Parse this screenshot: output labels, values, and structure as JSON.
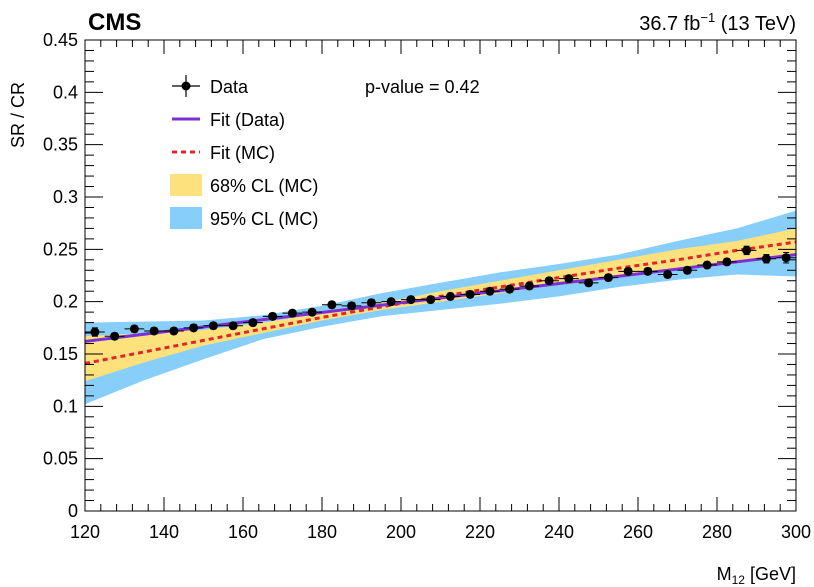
{
  "chart_data": {
    "type": "scatter",
    "experiment": "CMS",
    "lumi_prefix": "36.7 fb",
    "lumi_exp": "−1",
    "lumi_suffix": " (13 TeV)",
    "xlabel_main": "M",
    "xlabel_sub": "12",
    "xlabel_unit": " [GeV]",
    "ylabel": "SR / CR",
    "xlim": [
      120,
      300
    ],
    "ylim": [
      0,
      0.45
    ],
    "xticks": [
      120,
      140,
      160,
      180,
      200,
      220,
      240,
      260,
      280,
      300
    ],
    "xtick_labels": [
      "120",
      "140",
      "160",
      "180",
      "200",
      "220",
      "240",
      "260",
      "280",
      "300"
    ],
    "yticks": [
      0,
      0.05,
      0.1,
      0.15,
      0.2,
      0.25,
      0.3,
      0.35,
      0.4,
      0.45
    ],
    "ytick_labels": [
      "0",
      "0.05",
      "0.1",
      "0.15",
      "0.2",
      "0.25",
      "0.3",
      "0.35",
      "0.4",
      "0.45"
    ],
    "pvalue_text": "p-value = 0.42",
    "legend": [
      {
        "key": "data",
        "label": "Data",
        "color": "#000000"
      },
      {
        "key": "fit_data",
        "label": "Fit (Data)",
        "color": "#7b2fd4"
      },
      {
        "key": "fit_mc",
        "label": "Fit (MC)",
        "color": "#e3242b"
      },
      {
        "key": "cl68",
        "label": "68% CL (MC)",
        "color": "#fde17c"
      },
      {
        "key": "cl95",
        "label": "95% CL (MC)",
        "color": "#87cefa"
      }
    ],
    "data_points": {
      "x": [
        122.5,
        127.5,
        132.5,
        137.5,
        142.5,
        147.5,
        152.5,
        157.5,
        162.5,
        167.5,
        172.5,
        177.5,
        182.5,
        187.5,
        192.5,
        197.5,
        202.5,
        207.5,
        212.5,
        217.5,
        222.5,
        227.5,
        232.5,
        237.5,
        242.5,
        247.5,
        252.5,
        257.5,
        262.5,
        267.5,
        272.5,
        277.5,
        282.5,
        287.5,
        292.5,
        297.5
      ],
      "y": [
        0.171,
        0.167,
        0.174,
        0.172,
        0.172,
        0.175,
        0.177,
        0.177,
        0.18,
        0.186,
        0.189,
        0.19,
        0.197,
        0.196,
        0.199,
        0.2,
        0.202,
        0.202,
        0.205,
        0.207,
        0.21,
        0.212,
        0.215,
        0.22,
        0.222,
        0.218,
        0.223,
        0.229,
        0.229,
        0.226,
        0.23,
        0.235,
        0.238,
        0.249,
        0.241,
        0.242
      ],
      "yerr": [
        0.004,
        0.003,
        0.003,
        0.003,
        0.003,
        0.003,
        0.003,
        0.003,
        0.003,
        0.003,
        0.003,
        0.003,
        0.003,
        0.003,
        0.003,
        0.003,
        0.003,
        0.003,
        0.003,
        0.003,
        0.003,
        0.003,
        0.003,
        0.003,
        0.003,
        0.003,
        0.003,
        0.003,
        0.003,
        0.003,
        0.003,
        0.003,
        0.003,
        0.004,
        0.004,
        0.005
      ],
      "xerr": 2.5
    },
    "fit_data": {
      "x": [
        120,
        300
      ],
      "y": [
        0.162,
        0.245
      ]
    },
    "fit_mc": {
      "x": [
        120,
        135,
        150,
        165,
        180,
        195,
        210,
        225,
        240,
        255,
        270,
        285,
        300
      ],
      "y": [
        0.141,
        0.152,
        0.163,
        0.174,
        0.185,
        0.195,
        0.205,
        0.214,
        0.223,
        0.232,
        0.24,
        0.249,
        0.257
      ]
    },
    "band68": {
      "x": [
        120,
        135,
        150,
        165,
        180,
        195,
        210,
        225,
        240,
        255,
        270,
        285,
        300
      ],
      "lower": [
        0.124,
        0.142,
        0.158,
        0.17,
        0.182,
        0.192,
        0.2,
        0.208,
        0.217,
        0.225,
        0.232,
        0.238,
        0.245
      ],
      "upper": [
        0.167,
        0.17,
        0.173,
        0.18,
        0.189,
        0.199,
        0.21,
        0.22,
        0.23,
        0.24,
        0.25,
        0.258,
        0.27
      ]
    },
    "band95": {
      "x": [
        120,
        135,
        150,
        165,
        180,
        195,
        210,
        225,
        240,
        255,
        270,
        285,
        300
      ],
      "lower": [
        0.102,
        0.125,
        0.145,
        0.164,
        0.176,
        0.186,
        0.192,
        0.198,
        0.205,
        0.214,
        0.221,
        0.226,
        0.224
      ],
      "upper": [
        0.18,
        0.181,
        0.182,
        0.187,
        0.196,
        0.208,
        0.218,
        0.228,
        0.236,
        0.245,
        0.258,
        0.27,
        0.287
      ]
    }
  }
}
